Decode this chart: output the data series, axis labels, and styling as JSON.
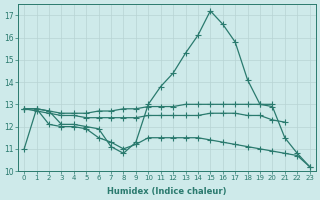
{
  "x": [
    0,
    1,
    2,
    3,
    4,
    5,
    6,
    7,
    8,
    9,
    10,
    11,
    12,
    13,
    14,
    15,
    16,
    17,
    18,
    19,
    20,
    21,
    22,
    23
  ],
  "line_peak": [
    11.0,
    12.8,
    12.7,
    12.1,
    12.1,
    12.0,
    11.9,
    11.1,
    10.8,
    11.3,
    13.0,
    13.8,
    14.4,
    15.3,
    16.1,
    17.2,
    16.6,
    15.8,
    14.1,
    13.0,
    12.9,
    11.5,
    10.8,
    10.2
  ],
  "line_flat_hi": [
    12.8,
    12.8,
    12.7,
    12.6,
    12.6,
    12.6,
    12.7,
    12.7,
    12.8,
    12.8,
    12.9,
    12.9,
    12.9,
    13.0,
    13.0,
    13.0,
    13.0,
    13.0,
    13.0,
    13.0,
    13.0,
    null,
    null,
    null
  ],
  "line_flat_lo": [
    12.8,
    12.7,
    12.6,
    12.5,
    12.5,
    12.4,
    12.4,
    12.4,
    12.4,
    12.4,
    12.5,
    12.5,
    12.5,
    12.5,
    12.5,
    12.6,
    12.6,
    12.6,
    12.5,
    12.5,
    12.3,
    12.2,
    null,
    null
  ],
  "line_descend": [
    12.8,
    12.8,
    12.1,
    12.0,
    12.0,
    11.9,
    11.5,
    11.3,
    11.0,
    11.2,
    11.5,
    11.5,
    11.5,
    11.5,
    11.5,
    11.4,
    11.3,
    11.2,
    11.1,
    11.0,
    10.9,
    10.8,
    10.7,
    10.2
  ],
  "ylim": [
    10,
    17.5
  ],
  "xlim_min": -0.5,
  "xlim_max": 23.5,
  "yticks": [
    10,
    11,
    12,
    13,
    14,
    15,
    16,
    17
  ],
  "xticks": [
    0,
    1,
    2,
    3,
    4,
    5,
    6,
    7,
    8,
    9,
    10,
    11,
    12,
    13,
    14,
    15,
    16,
    17,
    18,
    19,
    20,
    21,
    22,
    23
  ],
  "xlabel": "Humidex (Indice chaleur)",
  "line_color": "#2a7a6e",
  "bg_color": "#ceeaea",
  "grid_color": "#b8d4d4",
  "marker": "+",
  "markersize": 4,
  "linewidth": 0.9
}
